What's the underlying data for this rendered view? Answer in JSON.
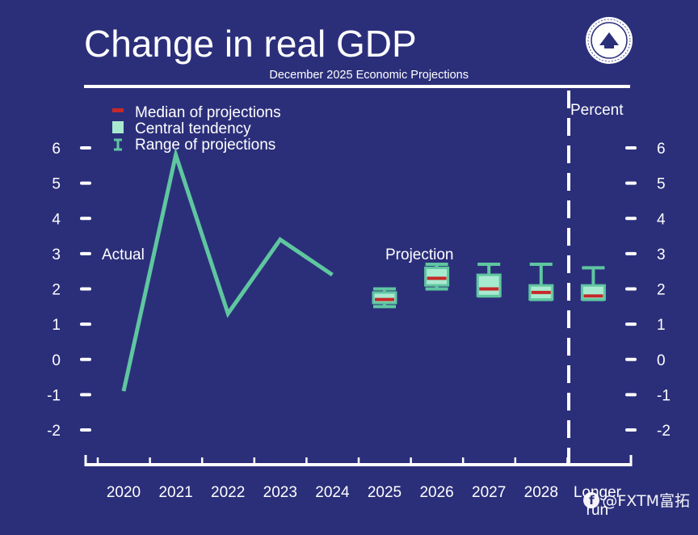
{
  "colors": {
    "background": "#2b2f7a",
    "line": "#5fc6a0",
    "box": "#a8ead0",
    "median": "#c62828",
    "axis": "#ffffff"
  },
  "chart_data": {
    "type": "line",
    "title": "Change in real GDP",
    "subtitle": "December 2025 Economic Projections",
    "ylabel": "Percent",
    "ylim": [
      -2,
      6
    ],
    "yticks": [
      6,
      5,
      4,
      3,
      2,
      1,
      0,
      -1,
      -2
    ],
    "categories": [
      "2020",
      "2021",
      "2022",
      "2023",
      "2024",
      "2025",
      "2026",
      "2027",
      "2028",
      "Longer run"
    ],
    "annotations": {
      "actual": "Actual",
      "projection": "Projection"
    },
    "legend": {
      "median": "Median of projections",
      "central": "Central tendency",
      "range": "Range of projections"
    },
    "actual": {
      "x": [
        "2020",
        "2021",
        "2022",
        "2023",
        "2024"
      ],
      "values": [
        -0.9,
        5.8,
        1.3,
        3.4,
        2.4
      ]
    },
    "projections": [
      {
        "x": "2025",
        "range": [
          1.5,
          2.0
        ],
        "central": [
          1.6,
          1.9
        ],
        "median": 1.7
      },
      {
        "x": "2026",
        "range": [
          2.0,
          2.7
        ],
        "central": [
          2.1,
          2.6
        ],
        "median": 2.3
      },
      {
        "x": "2027",
        "range": [
          1.8,
          2.7
        ],
        "central": [
          1.8,
          2.4
        ],
        "median": 2.0
      },
      {
        "x": "2028",
        "range": [
          1.7,
          2.7
        ],
        "central": [
          1.7,
          2.1
        ],
        "median": 1.9
      },
      {
        "x": "Longer run",
        "range": [
          1.7,
          2.6
        ],
        "central": [
          1.7,
          2.1
        ],
        "median": 1.8
      }
    ]
  },
  "watermark": {
    "text": "@FXTM富拓",
    "icon": "facebook-icon"
  }
}
